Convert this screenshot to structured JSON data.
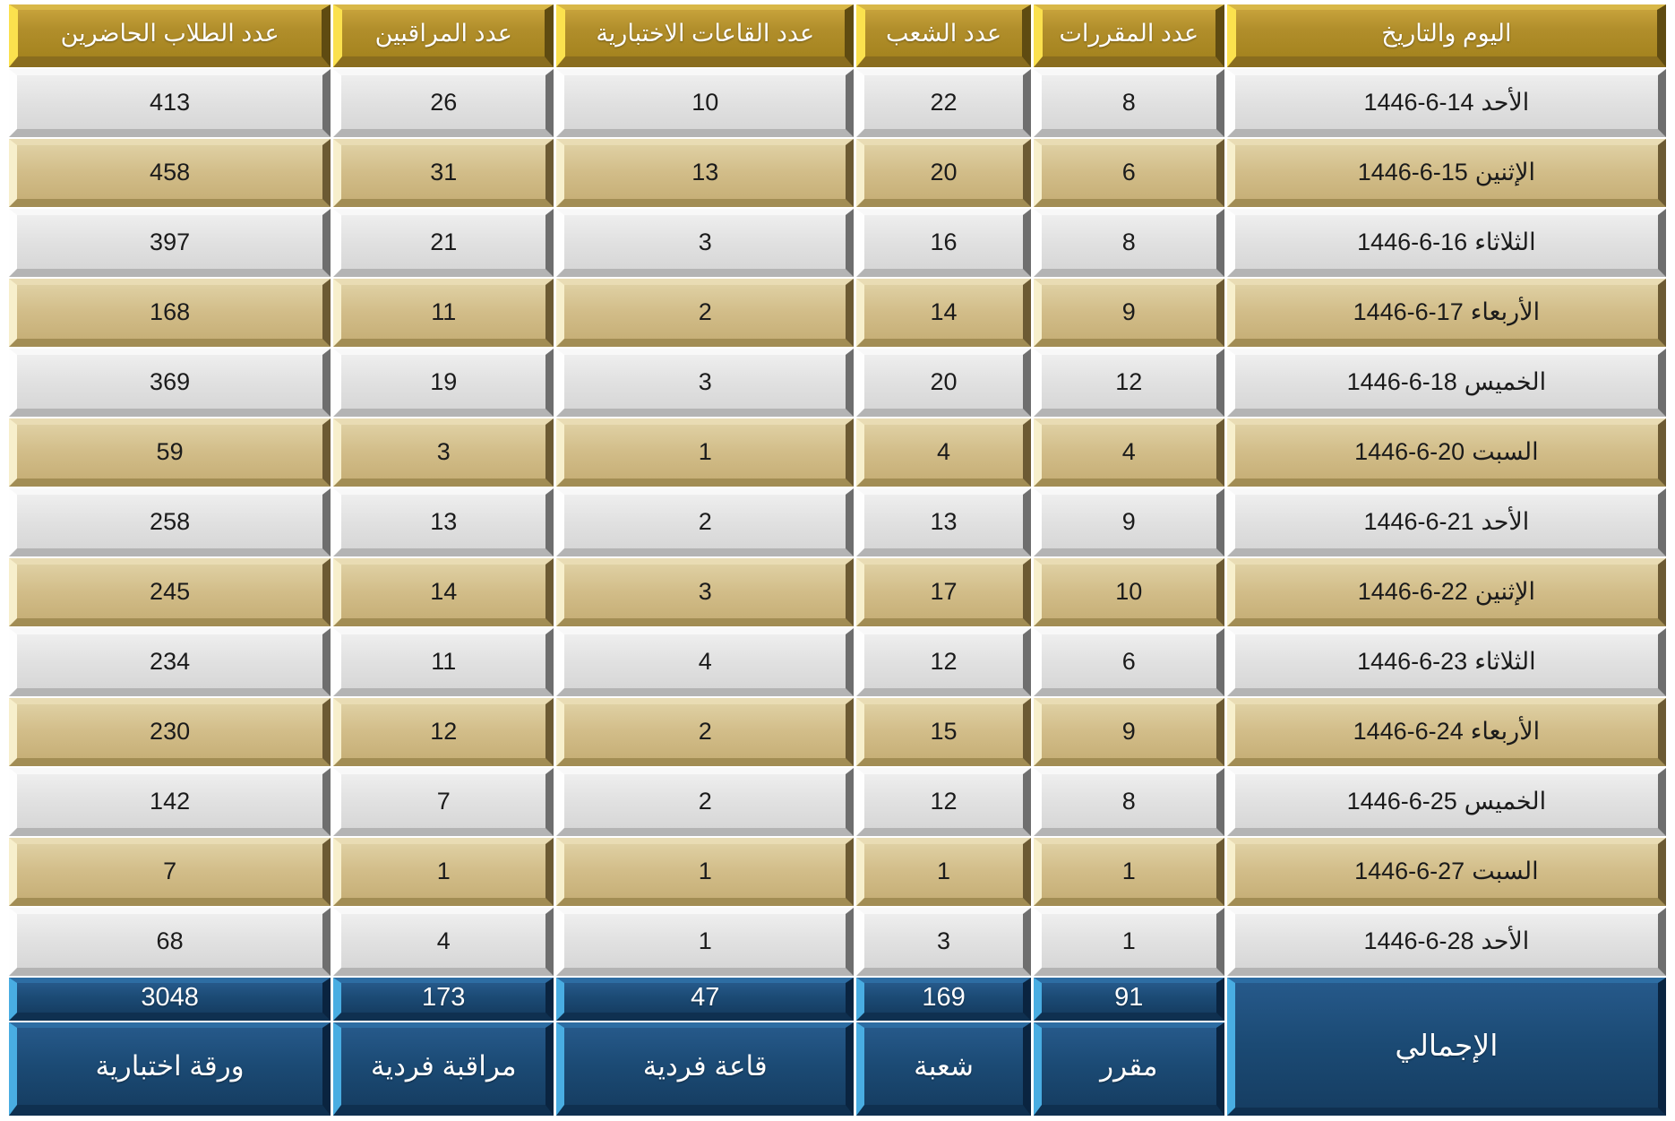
{
  "table": {
    "header": {
      "date": "اليوم والتاريخ",
      "courses": "عدد المقررات",
      "sections": "عدد الشعب",
      "halls": "عدد القاعات الاختبارية",
      "proctors": "عدد المراقبين",
      "students": "عدد الطلاب الحاضرين"
    },
    "rows": [
      {
        "day": "الأحد",
        "date": "1446-6-14",
        "courses": "8",
        "sections": "22",
        "halls": "10",
        "proctors": "26",
        "students": "413"
      },
      {
        "day": "الإثنين",
        "date": "1446-6-15",
        "courses": "6",
        "sections": "20",
        "halls": "13",
        "proctors": "31",
        "students": "458"
      },
      {
        "day": "الثلاثاء",
        "date": "1446-6-16",
        "courses": "8",
        "sections": "16",
        "halls": "3",
        "proctors": "21",
        "students": "397"
      },
      {
        "day": "الأربعاء",
        "date": "1446-6-17",
        "courses": "9",
        "sections": "14",
        "halls": "2",
        "proctors": "11",
        "students": "168"
      },
      {
        "day": "الخميس",
        "date": "1446-6-18",
        "courses": "12",
        "sections": "20",
        "halls": "3",
        "proctors": "19",
        "students": "369"
      },
      {
        "day": "السبت",
        "date": "1446-6-20",
        "courses": "4",
        "sections": "4",
        "halls": "1",
        "proctors": "3",
        "students": "59"
      },
      {
        "day": "الأحد",
        "date": "1446-6-21",
        "courses": "9",
        "sections": "13",
        "halls": "2",
        "proctors": "13",
        "students": "258"
      },
      {
        "day": "الإثنين",
        "date": "1446-6-22",
        "courses": "10",
        "sections": "17",
        "halls": "3",
        "proctors": "14",
        "students": "245"
      },
      {
        "day": "الثلاثاء",
        "date": "1446-6-23",
        "courses": "6",
        "sections": "12",
        "halls": "4",
        "proctors": "11",
        "students": "234"
      },
      {
        "day": "الأربعاء",
        "date": "1446-6-24",
        "courses": "9",
        "sections": "15",
        "halls": "2",
        "proctors": "12",
        "students": "230"
      },
      {
        "day": "الخميس",
        "date": "1446-6-25",
        "courses": "8",
        "sections": "12",
        "halls": "2",
        "proctors": "7",
        "students": "142"
      },
      {
        "day": "السبت",
        "date": "1446-6-27",
        "courses": "1",
        "sections": "1",
        "halls": "1",
        "proctors": "1",
        "students": "7"
      },
      {
        "day": "الأحد",
        "date": "1446-6-28",
        "courses": "1",
        "sections": "3",
        "halls": "1",
        "proctors": "4",
        "students": "68"
      }
    ],
    "totals": {
      "label": "الإجمالي",
      "courses": {
        "value": "91",
        "unit": "مقرر"
      },
      "sections": {
        "value": "169",
        "unit": "شعبة"
      },
      "halls": {
        "value": "47",
        "unit": "قاعة فردية"
      },
      "proctors": {
        "value": "173",
        "unit": "مراقبة فردية"
      },
      "students": {
        "value": "3048",
        "unit": "ورقة اختبارية"
      }
    },
    "colors": {
      "header_gold": "#b18e2b",
      "header_bevel_highlight": "#fbe14e",
      "row_gray": "#e1e1e1",
      "row_tan": "#d2bd89",
      "totals_navy": "#1b4a74",
      "totals_bevel_highlight": "#49ade2",
      "text_dark": "#1b1b1b",
      "text_light": "#ffffff"
    }
  }
}
